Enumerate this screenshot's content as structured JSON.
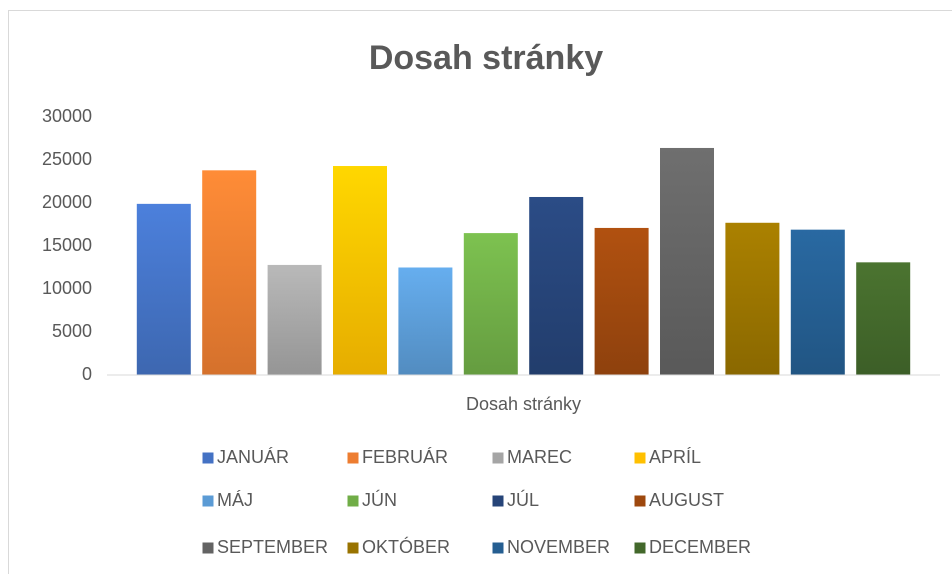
{
  "chart_data": {
    "type": "bar",
    "title": "Dosah stránky",
    "categories": [
      "Dosah stránky"
    ],
    "series": [
      {
        "name": "JANUÁR",
        "color": "#4472c4",
        "values": [
          19900
        ]
      },
      {
        "name": "FEBRUÁR",
        "color": "#ed7d31",
        "values": [
          23800
        ]
      },
      {
        "name": "MAREC",
        "color": "#a5a5a5",
        "values": [
          12800
        ]
      },
      {
        "name": "APRÍL",
        "color": "#ffc000",
        "values": [
          24300
        ]
      },
      {
        "name": "MÁJ",
        "color": "#5b9bd5",
        "values": [
          12500
        ]
      },
      {
        "name": "JÚN",
        "color": "#70ad47",
        "values": [
          16500
        ]
      },
      {
        "name": "JÚL",
        "color": "#264478",
        "values": [
          20700
        ]
      },
      {
        "name": "AUGUST",
        "color": "#9e480e",
        "values": [
          17100
        ]
      },
      {
        "name": "SEPTEMBER",
        "color": "#636363",
        "values": [
          26400
        ]
      },
      {
        "name": "OKTÓBER",
        "color": "#997300",
        "values": [
          17700
        ]
      },
      {
        "name": "NOVEMBER",
        "color": "#255e91",
        "values": [
          16900
        ]
      },
      {
        "name": "DECEMBER",
        "color": "#43682b",
        "values": [
          13100
        ]
      }
    ],
    "ylim": [
      0,
      30000
    ],
    "yticks": [
      0,
      5000,
      10000,
      15000,
      20000,
      25000,
      30000
    ],
    "grid": false,
    "legend": "bottom"
  }
}
